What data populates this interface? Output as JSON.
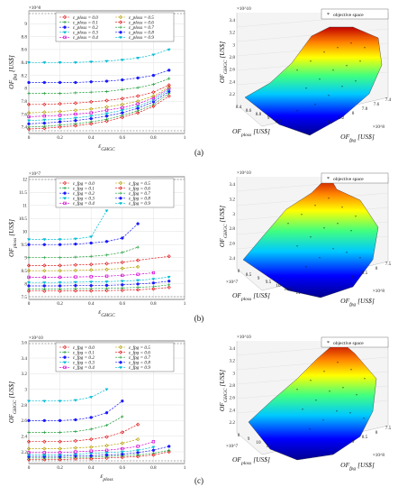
{
  "panel_labels": [
    "(a)",
    "(b)",
    "(c)"
  ],
  "chart_data": [
    {
      "id": "a-left",
      "type": "line",
      "ylabel": "OF_fpg [US$]",
      "xlabel": "ε_GHGC",
      "y_exponent": "×10^8",
      "ylim": [
        7.3,
        9.2
      ],
      "xlim": [
        0,
        1
      ],
      "yticks": [
        7.4,
        7.6,
        7.8,
        8,
        8.2,
        8.4,
        8.6,
        8.8,
        9
      ],
      "xticks": [
        0,
        0.2,
        0.4,
        0.6,
        0.8,
        1
      ],
      "grid": true,
      "legend_position": "top",
      "x": [
        0,
        0.1,
        0.2,
        0.3,
        0.4,
        0.5,
        0.6,
        0.7,
        0.8,
        0.9
      ],
      "series": [
        {
          "name": "ε_ploss = 0.0",
          "color": "#e41a1c",
          "marker": "diamond",
          "values": [
            7.37,
            7.38,
            7.4,
            7.42,
            7.45,
            7.49,
            7.55,
            7.62,
            7.72,
            7.88
          ]
        },
        {
          "name": "ε_ploss = 0.1",
          "color": "#1f9e3a",
          "marker": "plus",
          "values": [
            7.4,
            7.41,
            7.43,
            7.45,
            7.48,
            7.52,
            7.58,
            7.65,
            7.75,
            7.92
          ]
        },
        {
          "name": "ε_ploss = 0.2",
          "color": "#1a1aff",
          "marker": "circle",
          "values": [
            7.45,
            7.46,
            7.48,
            7.5,
            7.53,
            7.57,
            7.62,
            7.69,
            7.79,
            7.95
          ]
        },
        {
          "name": "ε_ploss = 0.3",
          "color": "#00bcd4",
          "marker": "star",
          "values": [
            7.5,
            7.51,
            7.52,
            7.54,
            7.57,
            7.61,
            7.66,
            7.72,
            7.82,
            7.98
          ]
        },
        {
          "name": "ε_ploss = 0.4",
          "color": "#d400d4",
          "marker": "square",
          "values": [
            7.56,
            7.57,
            7.58,
            7.6,
            7.62,
            7.66,
            7.7,
            7.76,
            7.85,
            8.0
          ]
        },
        {
          "name": "ε_ploss = 0.5",
          "color": "#b8a000",
          "marker": "diamond",
          "values": [
            7.62,
            7.63,
            7.64,
            7.66,
            7.68,
            7.71,
            7.75,
            7.8,
            7.88,
            8.02
          ]
        },
        {
          "name": "ε_ploss = 0.6",
          "color": "#e41a1c",
          "marker": "diamond",
          "values": [
            7.75,
            7.75,
            7.76,
            7.77,
            7.79,
            7.81,
            7.84,
            7.88,
            7.94,
            8.05
          ]
        },
        {
          "name": "ε_ploss = 0.7",
          "color": "#1f9e3a",
          "marker": "plus",
          "values": [
            7.92,
            7.92,
            7.92,
            7.93,
            7.94,
            7.95,
            7.98,
            8.01,
            8.06,
            8.15
          ]
        },
        {
          "name": "ε_ploss = 0.8",
          "color": "#1a1aff",
          "marker": "circle",
          "values": [
            8.09,
            8.09,
            8.09,
            8.09,
            8.1,
            8.11,
            8.13,
            8.16,
            8.2,
            8.28
          ]
        },
        {
          "name": "ε_ploss = 0.9",
          "color": "#00bcd4",
          "marker": "star",
          "values": [
            8.4,
            8.4,
            8.4,
            8.4,
            8.41,
            8.42,
            8.44,
            8.47,
            8.52,
            8.6
          ]
        }
      ]
    },
    {
      "id": "b-left",
      "type": "line",
      "ylabel": "OF_ploss [US$]",
      "xlabel": "ε_GHGC",
      "y_exponent": "×10^7",
      "ylim": [
        7.4,
        12.1
      ],
      "xlim": [
        0,
        1
      ],
      "yticks": [
        7.5,
        8,
        8.5,
        9,
        9.5,
        10,
        10.5,
        11,
        11.5,
        12
      ],
      "xticks": [
        0,
        0.2,
        0.4,
        0.6,
        0.8,
        1
      ],
      "grid": true,
      "legend_position": "top",
      "x": [
        0,
        0.1,
        0.2,
        0.3,
        0.4,
        0.5,
        0.6,
        0.7,
        0.8,
        0.9
      ],
      "series": [
        {
          "name": "ε_fpg = 0.0",
          "color": "#e41a1c",
          "marker": "diamond",
          "values": [
            7.72,
            7.72,
            7.72,
            7.73,
            7.73,
            7.74,
            7.75,
            7.77,
            7.8,
            7.86
          ]
        },
        {
          "name": "ε_fpg = 0.1",
          "color": "#1f9e3a",
          "marker": "plus",
          "values": [
            7.8,
            7.8,
            7.8,
            7.81,
            7.81,
            7.82,
            7.84,
            7.86,
            7.89,
            7.96
          ]
        },
        {
          "name": "ε_fpg = 0.2",
          "color": "#1a1aff",
          "marker": "circle",
          "values": [
            7.92,
            7.92,
            7.92,
            7.93,
            7.93,
            7.94,
            7.96,
            7.99,
            8.03,
            8.1
          ]
        },
        {
          "name": "ε_fpg = 0.3",
          "color": "#00bcd4",
          "marker": "star",
          "values": [
            8.05,
            8.05,
            8.05,
            8.06,
            8.07,
            8.08,
            8.1,
            8.13,
            8.18,
            8.26
          ]
        },
        {
          "name": "ε_fpg = 0.4",
          "color": "#d400d4",
          "marker": "square",
          "values": [
            8.25,
            8.25,
            8.25,
            8.26,
            8.27,
            8.29,
            8.32,
            8.36,
            8.42,
            null
          ]
        },
        {
          "name": "ε_fpg = 0.5",
          "color": "#b8a000",
          "marker": "diamond",
          "values": [
            8.5,
            8.5,
            8.5,
            8.51,
            8.53,
            8.55,
            8.59,
            8.65,
            null,
            null
          ]
        },
        {
          "name": "ε_fpg = 0.6",
          "color": "#e41a1c",
          "marker": "diamond",
          "values": [
            8.7,
            8.7,
            8.7,
            8.72,
            8.74,
            8.77,
            8.82,
            8.9,
            null,
            9.05
          ]
        },
        {
          "name": "ε_fpg = 0.7",
          "color": "#1f9e3a",
          "marker": "plus",
          "values": [
            9.0,
            9.0,
            9.0,
            9.02,
            9.05,
            9.1,
            9.2,
            9.4,
            null,
            null
          ]
        },
        {
          "name": "ε_fpg = 0.8",
          "color": "#1a1aff",
          "marker": "circle",
          "values": [
            9.5,
            9.5,
            9.5,
            9.52,
            9.56,
            9.62,
            9.75,
            10.3,
            null,
            null
          ]
        },
        {
          "name": "ε_fpg = 0.9",
          "color": "#00bcd4",
          "marker": "star",
          "values": [
            9.7,
            9.7,
            9.7,
            9.72,
            9.8,
            10.8,
            null,
            null,
            null,
            null
          ]
        }
      ]
    },
    {
      "id": "c-left",
      "type": "line",
      "ylabel": "OF_GHGC [US$]",
      "xlabel": "ε_ploss",
      "y_exponent": "×10^10",
      "ylim": [
        2.05,
        3.62
      ],
      "xlim": [
        0,
        1
      ],
      "yticks": [
        2.2,
        2.4,
        2.6,
        2.8,
        3,
        3.2,
        3.4,
        3.6
      ],
      "xticks": [
        0,
        0.2,
        0.4,
        0.6,
        0.8,
        1
      ],
      "grid": true,
      "legend_position": "top",
      "x": [
        0,
        0.1,
        0.2,
        0.3,
        0.4,
        0.5,
        0.6,
        0.7,
        0.8,
        0.9
      ],
      "series": [
        {
          "name": "ε_fpg = 0.0",
          "color": "#e41a1c",
          "marker": "diamond",
          "values": [
            2.1,
            2.1,
            2.1,
            2.11,
            2.11,
            2.12,
            2.13,
            2.14,
            2.16,
            2.2
          ]
        },
        {
          "name": "ε_fpg = 0.1",
          "color": "#1f9e3a",
          "marker": "plus",
          "values": [
            2.12,
            2.12,
            2.12,
            2.13,
            2.13,
            2.14,
            2.15,
            2.16,
            2.18,
            2.22
          ]
        },
        {
          "name": "ε_fpg = 0.2",
          "color": "#1a1aff",
          "marker": "circle",
          "values": [
            2.14,
            2.14,
            2.14,
            2.15,
            2.15,
            2.16,
            2.17,
            2.19,
            2.22,
            2.27
          ]
        },
        {
          "name": "ε_fpg = 0.3",
          "color": "#00bcd4",
          "marker": "star",
          "values": [
            2.16,
            2.16,
            2.16,
            2.17,
            2.18,
            2.19,
            2.2,
            2.22,
            2.26,
            null
          ]
        },
        {
          "name": "ε_fpg = 0.4",
          "color": "#d400d4",
          "marker": "square",
          "values": [
            2.19,
            2.19,
            2.19,
            2.2,
            2.21,
            2.22,
            2.24,
            2.27,
            2.33,
            null
          ]
        },
        {
          "name": "ε_fpg = 0.5",
          "color": "#b8a000",
          "marker": "diamond",
          "values": [
            2.24,
            2.24,
            2.24,
            2.25,
            2.26,
            2.28,
            2.31,
            2.36,
            null,
            null
          ]
        },
        {
          "name": "ε_fpg = 0.6",
          "color": "#e41a1c",
          "marker": "diamond",
          "values": [
            2.33,
            2.33,
            2.33,
            2.34,
            2.36,
            2.39,
            2.45,
            2.55,
            null,
            null
          ]
        },
        {
          "name": "ε_fpg = 0.7",
          "color": "#1f9e3a",
          "marker": "plus",
          "values": [
            2.45,
            2.45,
            2.45,
            2.46,
            2.49,
            2.54,
            2.65,
            null,
            null,
            null
          ]
        },
        {
          "name": "ε_fpg = 0.8",
          "color": "#1a1aff",
          "marker": "circle",
          "values": [
            2.6,
            2.6,
            2.6,
            2.61,
            2.64,
            2.7,
            2.85,
            null,
            null,
            null
          ]
        },
        {
          "name": "ε_fpg = 0.9",
          "color": "#00bcd4",
          "marker": "star",
          "values": [
            2.85,
            2.85,
            2.85,
            2.86,
            2.9,
            3.0,
            null,
            null,
            null,
            null
          ]
        }
      ]
    },
    {
      "id": "a-right",
      "type": "surface3d",
      "zlabel": "OF_GHGC [US$]",
      "xlabel": "OF_ploss [US$]",
      "ylabel": "OF_fpg [US$]",
      "z_exponent": "×10^10",
      "x_exponent": "",
      "y_exponent": "×10^8",
      "zticks": [
        "2.2",
        "2.4",
        "2.6",
        "2.8",
        "3",
        "3.2",
        "3.4"
      ],
      "xticks": [
        "8.4",
        "8.6",
        "8.8",
        "9",
        "9.2"
      ],
      "yticks": [
        "7.4",
        "7.6",
        "7.8",
        "8",
        "8.2",
        "8.4"
      ],
      "legend": "objective space",
      "legend_position": "top-right"
    },
    {
      "id": "b-right",
      "type": "surface3d",
      "zlabel": "OF_GHGC [US$]",
      "xlabel": "OF_ploss [US$]",
      "ylabel": "OF_fpg [US$]",
      "z_exponent": "×10^10",
      "x_exponent": "×10^7",
      "y_exponent": "×10^8",
      "zticks": [
        "2.4",
        "2.6",
        "2.8",
        "3",
        "3.2",
        "3.4"
      ],
      "xticks": [
        "8",
        "8.5",
        "9",
        "9.5",
        "10",
        "10.5",
        "11"
      ],
      "yticks": [
        "7.5",
        "8",
        "8.5",
        "9"
      ],
      "legend": "objective space",
      "legend_position": "top-right"
    },
    {
      "id": "c-right",
      "type": "surface3d",
      "zlabel": "OF_GHGC [US$]",
      "xlabel": "OF_ploss [US$]",
      "ylabel": "OF_fpg [US$]",
      "z_exponent": "×10^10",
      "x_exponent": "×10^7",
      "y_exponent": "×10^8",
      "zticks": [
        "2.2",
        "2.4",
        "2.6",
        "2.8",
        "3",
        "3.2",
        "3.4"
      ],
      "xticks": [
        "8",
        "9",
        "10",
        "11"
      ],
      "yticks": [
        "7.5",
        "8",
        "8.5",
        "9"
      ],
      "legend": "objective space",
      "legend_position": "top-right"
    }
  ]
}
